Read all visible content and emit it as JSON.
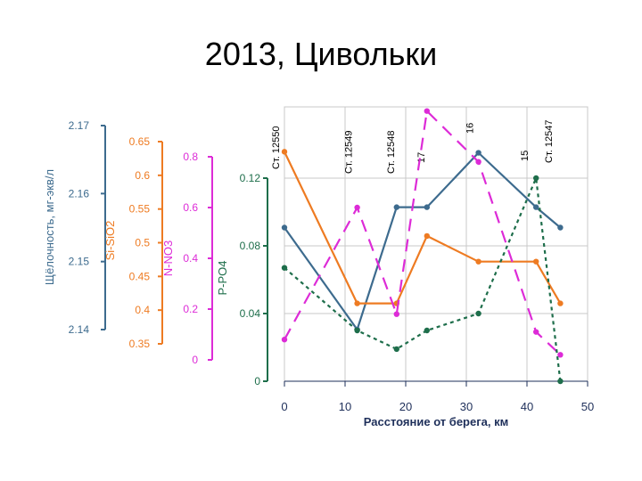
{
  "slide": {
    "title": "2013, Цивольки"
  },
  "colors": {
    "alkalinity": "#3d6b8e",
    "silicon": "#ee7b22",
    "nitrate": "#dd2bd7",
    "phosphate": "#1e6e4b",
    "grid": "#c8c8c8",
    "axis": "#1e2f5a"
  },
  "chart_data": {
    "type": "line",
    "xlabel": "Расстояние от берега, км",
    "x_ticks": [
      "0",
      "10",
      "20",
      "30",
      "40",
      "50"
    ],
    "xlim": [
      0,
      50
    ],
    "station_labels": [
      {
        "text": "Ст. 12550",
        "x": 0
      },
      {
        "text": "Ст. 12549",
        "x": 12
      },
      {
        "text": "Ст. 12548",
        "x": 19
      },
      {
        "text": "17",
        "x": 24
      },
      {
        "text": "16",
        "x": 32
      },
      {
        "text": "15",
        "x": 41
      },
      {
        "text": "Ст. 12547",
        "x": 45
      }
    ],
    "axes": [
      {
        "id": "alkalinity",
        "label": "Щёлочность, мг-экв/л",
        "ticks": [
          "2.17",
          "2.16",
          "2.15",
          "2.14"
        ],
        "ylim": [
          2.14,
          2.17
        ]
      },
      {
        "id": "silicon",
        "label": "Si-SiO2",
        "ticks": [
          "0.65",
          "0.6",
          "0.55",
          "0.5",
          "0.45",
          "0.4",
          "0.35"
        ],
        "ylim": [
          0.35,
          0.65
        ]
      },
      {
        "id": "nitrate",
        "label": "N-NO3",
        "ticks": [
          "0.8",
          "0.6",
          "0.4",
          "0.2",
          "0"
        ],
        "ylim": [
          0,
          0.8
        ]
      },
      {
        "id": "phosphate",
        "label": "P-PO4",
        "ticks": [
          "0.12",
          "0.08",
          "0.04",
          "0"
        ],
        "ylim": [
          0,
          0.12
        ]
      }
    ],
    "series": [
      {
        "name": "Щёлочность, мг-экв/л",
        "axis": "alkalinity",
        "style": "solid",
        "x": [
          0,
          12,
          18.5,
          23.5,
          32,
          41.5,
          45.5
        ],
        "values": [
          2.155,
          2.14,
          2.158,
          2.158,
          2.166,
          2.158,
          2.155
        ]
      },
      {
        "name": "Si-SiO2",
        "axis": "silicon",
        "style": "solid",
        "x": [
          0,
          12,
          18.5,
          23.5,
          32,
          41.5,
          45.5
        ],
        "values": [
          0.635,
          0.41,
          0.41,
          0.51,
          0.472,
          0.472,
          0.41
        ]
      },
      {
        "name": "N-NO3",
        "axis": "nitrate",
        "style": "dashed",
        "x": [
          0,
          12,
          18.5,
          23.5,
          32,
          41.5,
          45.5
        ],
        "values": [
          0.08,
          0.6,
          0.18,
          0.98,
          0.78,
          0.11,
          0.02
        ]
      },
      {
        "name": "P-PO4",
        "axis": "phosphate",
        "style": "dotted",
        "x": [
          0,
          12,
          18.5,
          23.5,
          32,
          41.5,
          45.5
        ],
        "values": [
          0.067,
          0.03,
          0.019,
          0.03,
          0.04,
          0.12,
          0.0
        ]
      }
    ]
  }
}
